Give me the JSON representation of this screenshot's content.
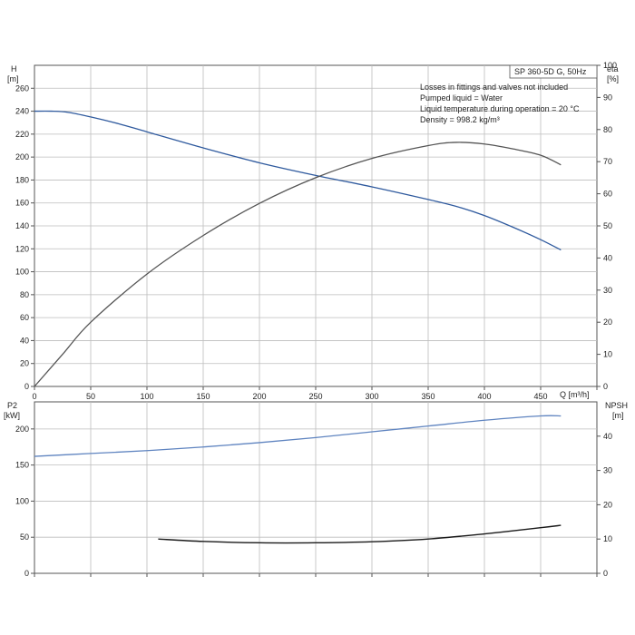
{
  "chart_data": [
    {
      "type": "line",
      "title": "SP 360-5D G, 50Hz",
      "notes": [
        "Losses in fittings and valves not included",
        "Pumped liquid = Water",
        "Liquid temperature during operation = 20 °C",
        "Density = 998.2 kg/m³"
      ],
      "xlabel": "Q [m³/h]",
      "ylabel_left_name": "H",
      "ylabel_left_unit": "[m]",
      "ylabel_right_name": "eta",
      "ylabel_right_unit": "[%]",
      "xlim": [
        0,
        500
      ],
      "ylim_left": [
        0,
        280
      ],
      "ylim_right": [
        0,
        100
      ],
      "x_ticks": [
        0,
        50,
        100,
        150,
        200,
        250,
        300,
        350,
        400,
        450
      ],
      "y_ticks_left": [
        0,
        20,
        40,
        60,
        80,
        100,
        120,
        140,
        160,
        180,
        200,
        220,
        240,
        260
      ],
      "y_ticks_right": [
        0,
        10,
        20,
        30,
        40,
        50,
        60,
        70,
        80,
        90,
        100
      ],
      "grid": true,
      "series": [
        {
          "axis": "left",
          "color": "#2f5a9e",
          "x": [
            0,
            15,
            30,
            50,
            75,
            100,
            150,
            200,
            250,
            300,
            350,
            375,
            400,
            425,
            450,
            468
          ],
          "y": [
            240,
            240,
            239,
            235,
            229,
            222,
            208,
            195,
            184,
            174,
            163,
            157,
            149,
            139,
            128,
            119
          ]
        },
        {
          "axis": "right",
          "color": "#555555",
          "x": [
            0,
            25,
            50,
            100,
            150,
            200,
            250,
            300,
            350,
            375,
            400,
            425,
            450,
            468
          ],
          "y": [
            0,
            10,
            20,
            35,
            47,
            57,
            65,
            71,
            75,
            76,
            75.5,
            74,
            72,
            69
          ]
        }
      ]
    },
    {
      "type": "line",
      "xlabel": "",
      "ylabel_left_name": "P2",
      "ylabel_left_unit": "[kW]",
      "ylabel_right_name": "NPSH",
      "ylabel_right_unit": "[m]",
      "xlim": [
        0,
        500
      ],
      "ylim_left": [
        0,
        237.5
      ],
      "ylim_right": [
        0,
        50
      ],
      "y_ticks_left": [
        0,
        50,
        100,
        150,
        200
      ],
      "y_ticks_right": [
        0,
        10,
        20,
        30,
        40
      ],
      "grid": true,
      "series": [
        {
          "axis": "left",
          "color": "#5f84c0",
          "x": [
            0,
            50,
            100,
            150,
            200,
            250,
            300,
            350,
            400,
            450,
            468
          ],
          "y": [
            162,
            166,
            170,
            175,
            181,
            188,
            196,
            204,
            212,
            218,
            218
          ]
        },
        {
          "axis": "right",
          "color": "#1a1a1a",
          "x": [
            110,
            150,
            200,
            250,
            300,
            350,
            400,
            450,
            468
          ],
          "y": [
            10,
            9.3,
            8.9,
            8.9,
            9.2,
            10,
            11.5,
            13.3,
            14
          ]
        }
      ]
    }
  ]
}
